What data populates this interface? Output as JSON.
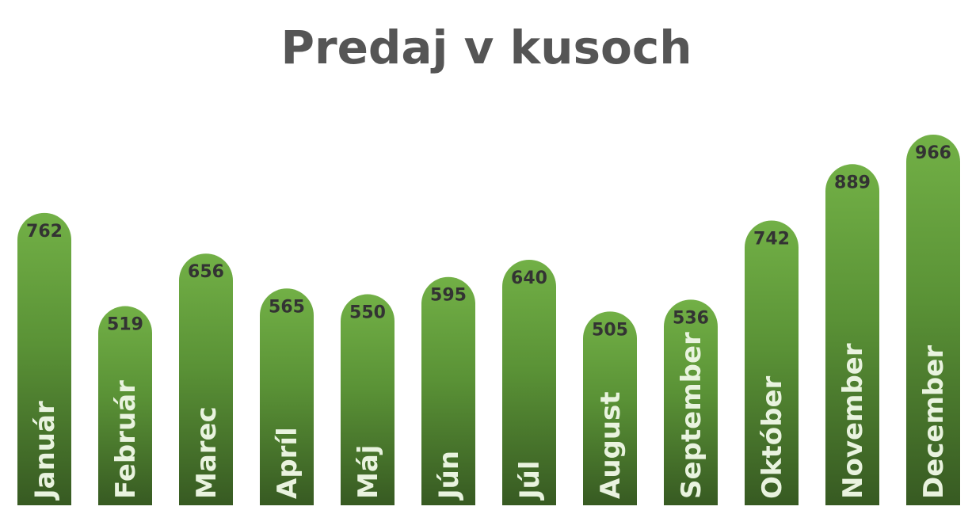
{
  "chart_data": {
    "type": "bar",
    "title": "Predaj v kusoch",
    "categories": [
      "Január",
      "Február",
      "Marec",
      "Apríl",
      "Máj",
      "Jún",
      "Júl",
      "August",
      "September",
      "Október",
      "November",
      "December"
    ],
    "values": [
      762,
      519,
      656,
      565,
      550,
      595,
      640,
      505,
      536,
      742,
      889,
      966
    ],
    "xlabel": "",
    "ylabel": "",
    "ylim": [
      0,
      966
    ],
    "grid": false,
    "legend": "none",
    "colors": {
      "bar_top": "#72b046",
      "bar_bottom": "#375a22",
      "value_label": "#333333",
      "category_label": "#e9f3df",
      "title": "#555555"
    }
  }
}
